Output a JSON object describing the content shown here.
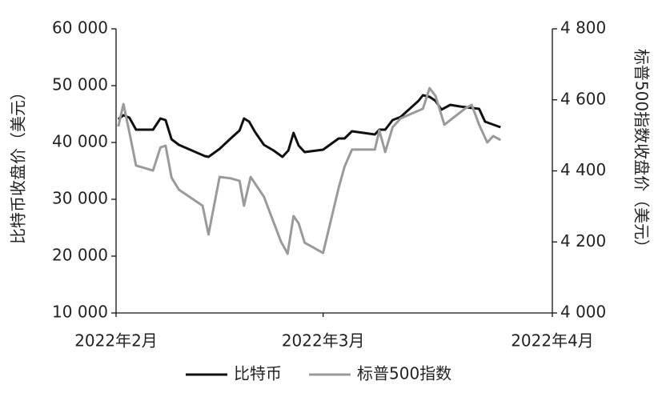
{
  "chart_data": {
    "type": "line",
    "y_label": "比特币收盘价（美元）",
    "y2_label": "标普500指数收盘价（美元）",
    "xlim": [
      0,
      59
    ],
    "xticks": [
      {
        "value": 0,
        "label": "2022年2月"
      },
      {
        "value": 28,
        "label": "2022年3月"
      },
      {
        "value": 59,
        "label": "2022年4月"
      }
    ],
    "ylim": [
      10000,
      60000
    ],
    "yticks": [
      {
        "value": 10000,
        "label": "10 000"
      },
      {
        "value": 20000,
        "label": "20 000"
      },
      {
        "value": 30000,
        "label": "30 000"
      },
      {
        "value": 40000,
        "label": "40 000"
      },
      {
        "value": 50000,
        "label": "50 000"
      },
      {
        "value": 60000,
        "label": "60 000"
      }
    ],
    "y2lim": [
      4000,
      4800
    ],
    "y2ticks": [
      {
        "value": 4000,
        "label": "4 000"
      },
      {
        "value": 4200,
        "label": "4 200"
      },
      {
        "value": 4400,
        "label": "4 400"
      },
      {
        "value": 4600,
        "label": "4 600"
      },
      {
        "value": 4800,
        "label": "4 800"
      }
    ],
    "legend": "bottom",
    "series": [
      {
        "name": "比特币",
        "color": "#111111",
        "x": [
          0.3,
          1,
          1.8,
          2.7,
          5,
          6,
          6.7,
          7.5,
          8.5,
          12,
          12.5,
          14,
          15.5,
          16.7,
          17.3,
          18,
          18.8,
          20,
          21.3,
          22.5,
          23.3,
          24,
          24.7,
          25.5,
          28,
          30.1,
          30.9,
          31.9,
          35,
          35.6,
          36.4,
          37.4,
          38.5,
          40.9,
          41.5,
          42.4,
          43.2,
          44,
          45.2,
          46.5,
          49.1,
          49.9,
          50.8,
          52
        ],
        "values": [
          44084,
          44789,
          44366,
          42254,
          42254,
          44225,
          43943,
          40563,
          39577,
          37606,
          37465,
          38873,
          40704,
          42113,
          44225,
          43662,
          41831,
          39577,
          38592,
          37465,
          38592,
          41690,
          39436,
          38310,
          38732,
          40704,
          40704,
          41972,
          41408,
          42254,
          42254,
          43943,
          44507,
          47324,
          48310,
          48028,
          47324,
          45775,
          46620,
          46338,
          45915,
          43662,
          43239,
          42676
        ]
      },
      {
        "name": "标普500指数",
        "color": "#9a9a9a",
        "axis": "y2",
        "x": [
          0.3,
          1,
          1.8,
          2.7,
          5,
          6,
          6.7,
          7.5,
          8.5,
          11.7,
          12.5,
          14,
          15.5,
          16.7,
          17.3,
          18.2,
          20,
          22.3,
          23.2,
          24,
          24.7,
          25.5,
          28,
          30.1,
          30.9,
          31.9,
          35,
          35.6,
          36.4,
          37.4,
          38.5,
          41.5,
          42.4,
          43.2,
          44.4,
          47.3,
          48.1,
          49.1,
          50.2,
          51,
          52
        ],
        "values": [
          4525,
          4588,
          4509,
          4415,
          4401,
          4466,
          4471,
          4381,
          4347,
          4302,
          4221,
          4383,
          4379,
          4372,
          4302,
          4383,
          4327,
          4201,
          4167,
          4273,
          4252,
          4198,
          4169,
          4352,
          4412,
          4460,
          4460,
          4514,
          4453,
          4523,
          4548,
          4575,
          4633,
          4611,
          4530,
          4577,
          4586,
          4530,
          4480,
          4498,
          4487
        ]
      }
    ]
  }
}
